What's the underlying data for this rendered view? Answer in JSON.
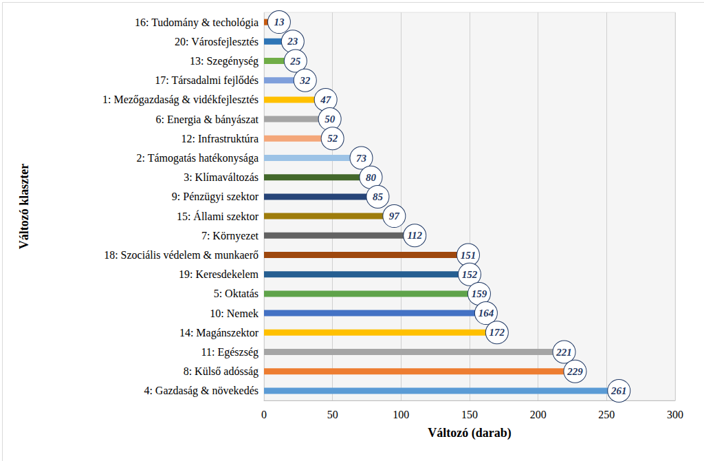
{
  "chart_data": {
    "type": "bar",
    "orientation": "horizontal",
    "x_label": "Változó (darab)",
    "y_label": "Változó klaszter",
    "categories": [
      "16: Tudomány & techológia",
      "20: Városfejlesztés",
      "13: Szegénység",
      "17: Társadalmi fejlődés",
      "1: Mezőgazdaság & vidékfejlesztés",
      "6: Energia & bányászat",
      "12: Infrastruktúra",
      "2: Támogatás hatékonysága",
      "3: Klímaváltozás",
      "9: Pénzügyi szektor",
      "15: Állami szektor",
      "7: Környezet",
      "18: Szociális védelem & munkaerő",
      "19: Keresdekelem",
      "5: Oktatás",
      "10: Nemek",
      "14: Magánszektor",
      "11: Egészség",
      "8: Külső adósság",
      "4: Gazdaság & növekedés"
    ],
    "values": [
      13,
      23,
      25,
      32,
      47,
      50,
      52,
      73,
      80,
      85,
      97,
      112,
      151,
      152,
      159,
      164,
      172,
      221,
      229,
      261
    ],
    "colors": [
      "#c55a11",
      "#2e75b6",
      "#70ad47",
      "#7f9fdb",
      "#ffc000",
      "#a5a5a5",
      "#f4a77a",
      "#9dc3e6",
      "#43682b",
      "#264478",
      "#9e7c0c",
      "#636363",
      "#9e480e",
      "#255e91",
      "#5fa34a",
      "#4472c4",
      "#ffc000",
      "#a5a5a5",
      "#ed7d31",
      "#5b9bd5"
    ],
    "xlim": [
      0,
      300
    ],
    "xticks": [
      0,
      50,
      100,
      150,
      200,
      250,
      300
    ],
    "grid": true,
    "data_labels": true
  }
}
